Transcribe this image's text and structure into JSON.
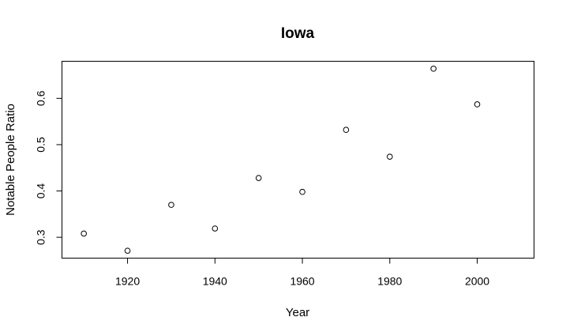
{
  "chart_data": {
    "type": "scatter",
    "title": "Iowa",
    "xlabel": "Year",
    "ylabel": "Notable People Ratio",
    "xlim": [
      1905,
      2013
    ],
    "ylim": [
      0.255,
      0.68
    ],
    "xticks": [
      1920,
      1940,
      1960,
      1980,
      2000
    ],
    "yticks": [
      0.3,
      0.4,
      0.5,
      0.6
    ],
    "grid": false,
    "marker": "open-circle",
    "x": [
      1910,
      1920,
      1930,
      1940,
      1950,
      1960,
      1970,
      1980,
      1990,
      2000
    ],
    "y": [
      0.308,
      0.271,
      0.37,
      0.319,
      0.428,
      0.398,
      0.532,
      0.474,
      0.664,
      0.587
    ]
  }
}
